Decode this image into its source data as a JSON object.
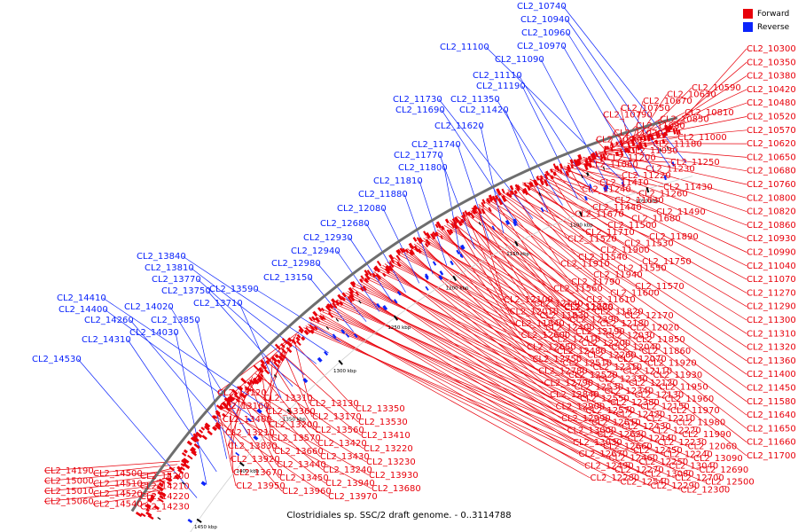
{
  "caption": "Clostridiales sp. SSC/2 draft genome. - 0..3114788",
  "legend": {
    "forward_label": "Forward",
    "reverse_label": "Reverse",
    "forward_color": "#e8000b",
    "reverse_color": "#0b24fb"
  },
  "ruler_ticks": [
    {
      "kbp": 1050,
      "label": "1050 kbp"
    },
    {
      "kbp": 1100,
      "label": "1100 kbp"
    },
    {
      "kbp": 1150,
      "label": "1150 kbp"
    },
    {
      "kbp": 1200,
      "label": "1200 kbp"
    },
    {
      "kbp": 1250,
      "label": "1250 kbp"
    },
    {
      "kbp": 1300,
      "label": "1300 kbp"
    },
    {
      "kbp": 1350,
      "label": "1350 kbp"
    },
    {
      "kbp": 1400,
      "label": "1400 kbp"
    },
    {
      "kbp": 1450,
      "label": "1450 kbp"
    }
  ],
  "reverse_labels": [
    "CL2_10740",
    "CL2_10940",
    "CL2_10960",
    "CL2_10970",
    "CL2_11100",
    "CL2_11090",
    "CL2_11110",
    "CL2_11190",
    "CL2_11350",
    "CL2_11420",
    "CL2_11730",
    "CL2_11690",
    "CL2_11620",
    "CL2_11740",
    "CL2_11770",
    "CL2_11800",
    "CL2_11810",
    "CL2_11880",
    "CL2_12080",
    "CL2_12680",
    "CL2_12930",
    "CL2_12940",
    "CL2_12980",
    "CL2_13150",
    "CL2_13590",
    "CL2_13840",
    "CL2_13810",
    "CL2_13770",
    "CL2_13750",
    "CL2_13710",
    "CL2_14410",
    "CL2_14400",
    "CL2_14020",
    "CL2_14260",
    "CL2_13850",
    "CL2_14310",
    "CL2_14030",
    "CL2_14530"
  ],
  "forward_right_column": [
    "CL2_10300",
    "CL2_10350",
    "CL2_10380",
    "CL2_10420",
    "CL2_10480",
    "CL2_10520",
    "CL2_10570",
    "CL2_10620",
    "CL2_10650",
    "CL2_10680",
    "CL2_10760",
    "CL2_10800",
    "CL2_10820",
    "CL2_10860",
    "CL2_10930",
    "CL2_10990",
    "CL2_11040",
    "CL2_11070",
    "CL2_11270",
    "CL2_11290",
    "CL2_11300",
    "CL2_11310",
    "CL2_11320",
    "CL2_11360",
    "CL2_11400",
    "CL2_11450",
    "CL2_11580",
    "CL2_11640",
    "CL2_11650",
    "CL2_11660",
    "CL2_11700"
  ],
  "forward_upper_block": [
    "CL2_10590",
    "CL2_10630",
    "CL2_10670",
    "CL2_10750",
    "CL2_10790",
    "CL2_10810",
    "CL2_10850",
    "CL2_11080",
    "CL2_11020",
    "CL2_10980",
    "CL2_11000",
    "CL2_11180",
    "CL2_11030",
    "CL2_11200",
    "CL2_11060",
    "CL2_11250",
    "CL2_11230",
    "CL2_11220",
    "CL2_11410",
    "CL2_11240",
    "CL2_11430",
    "CL2_11260",
    "CL2_11630",
    "CL2_11440",
    "CL2_11670",
    "CL2_11490",
    "CL2_11680",
    "CL2_11500",
    "CL2_11710",
    "CL2_11520",
    "CL2_11890",
    "CL2_11530",
    "CL2_11900",
    "CL2_11540",
    "CL2_11910",
    "CL2_11750",
    "CL2_11550",
    "CL2_11940",
    "CL2_11790",
    "CL2_11560",
    "CL2_11570",
    "CL2_11600",
    "CL2_11610",
    "CL2_11720"
  ],
  "forward_middle_block": [
    "CL2_12100",
    "CL2_12140",
    "CL2_12000",
    "CL2_11820",
    "CL2_12170",
    "CL2_12010",
    "CL2_11830",
    "CL2_12390",
    "CL2_12180",
    "CL2_12020",
    "CL2_11840",
    "CL2_12400",
    "CL2_12190",
    "CL2_12030",
    "CL2_11850",
    "CL2_12600",
    "CL2_12410",
    "CL2_12200",
    "CL2_12040",
    "CL2_11860",
    "CL2_12650",
    "CL2_12480",
    "CL2_12260",
    "CL2_12070",
    "CL2_11920",
    "CL2_12750",
    "CL2_12510",
    "CL2_12310",
    "CL2_12110",
    "CL2_11930",
    "CL2_12780",
    "CL2_12520",
    "CL2_12330",
    "CL2_12120",
    "CL2_11950",
    "CL2_12790",
    "CL2_12530",
    "CL2_12340",
    "CL2_12130",
    "CL2_11960",
    "CL2_12840",
    "CL2_12550",
    "CL2_12380",
    "CL2_12150",
    "CL2_11970",
    "CL2_12900",
    "CL2_12570",
    "CL2_12420",
    "CL2_12210",
    "CL2_11980",
    "CL2_12990",
    "CL2_12610",
    "CL2_12430",
    "CL2_12220",
    "CL2_11990",
    "CL2_13000",
    "CL2_12620",
    "CL2_12440",
    "CL2_12230",
    "CL2_12060",
    "CL2_13030",
    "CL2_12660",
    "CL2_12450",
    "CL2_12240",
    "CL2_13090",
    "CL2_12670",
    "CL2_12460",
    "CL2_12250",
    "CL2_13040",
    "CL2_12690",
    "CL2_12490",
    "CL2_12270",
    "CL2_13080",
    "CL2_12700",
    "CL2_12500",
    "CL2_12280",
    "CL2_12540",
    "CL2_12290",
    "CL2_12300"
  ],
  "forward_lower_block": [
    "CL2_13120",
    "CL2_13310",
    "CL2_13130",
    "CL2_13350",
    "CL2_13160",
    "CL2_13360",
    "CL2_13170",
    "CL2_13530",
    "CL2_13400",
    "CL2_13200",
    "CL2_13560",
    "CL2_13410",
    "CL2_13210",
    "CL2_13570",
    "CL2_13420",
    "CL2_13220",
    "CL2_13830",
    "CL2_13660",
    "CL2_13430",
    "CL2_13230",
    "CL2_13920",
    "CL2_13440",
    "CL2_13240",
    "CL2_13930",
    "CL2_13670",
    "CL2_13450",
    "CL2_13940",
    "CL2_13680",
    "CL2_13950",
    "CL2_13960",
    "CL2_13970"
  ],
  "forward_bottom_left": [
    "CL2_14190",
    "CL2_14500",
    "CL2_14200",
    "CL2_15000",
    "CL2_14510",
    "CL2_14210",
    "CL2_15010",
    "CL2_14520",
    "CL2_14220",
    "CL2_15060",
    "CL2_14540",
    "CL2_14230"
  ]
}
